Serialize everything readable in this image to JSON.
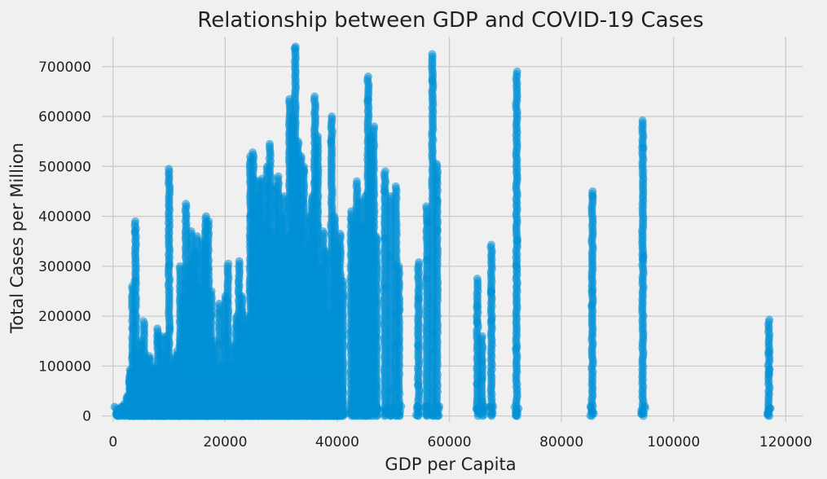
{
  "chart_data": {
    "type": "scatter",
    "title": "Relationship between GDP and COVID-19 Cases",
    "xlabel": "GDP per Capita",
    "ylabel": "Total Cases per Million",
    "xlim": [
      -2000,
      123000
    ],
    "ylim": [
      -12000,
      760000
    ],
    "grid": true,
    "color": "#008fd5",
    "point_alpha": 0.55,
    "x_ticks": [
      {
        "value": 0,
        "label": "0"
      },
      {
        "value": 20000,
        "label": "20000"
      },
      {
        "value": 40000,
        "label": "40000"
      },
      {
        "value": 60000,
        "label": "60000"
      },
      {
        "value": 80000,
        "label": "80000"
      },
      {
        "value": 100000,
        "label": "100000"
      },
      {
        "value": 120000,
        "label": "120000"
      }
    ],
    "y_ticks": [
      {
        "value": 0,
        "label": "0"
      },
      {
        "value": 100000,
        "label": "100000"
      },
      {
        "value": 200000,
        "label": "200000"
      },
      {
        "value": 300000,
        "label": "300000"
      },
      {
        "value": 400000,
        "label": "400000"
      },
      {
        "value": 500000,
        "label": "500000"
      },
      {
        "value": 600000,
        "label": "600000"
      },
      {
        "value": 700000,
        "label": "700000"
      }
    ],
    "country_columns": [
      {
        "x": 700,
        "ymax": 8000
      },
      {
        "x": 1100,
        "ymax": 12000
      },
      {
        "x": 1500,
        "ymax": 15000
      },
      {
        "x": 2000,
        "ymax": 25000
      },
      {
        "x": 2500,
        "ymax": 40000
      },
      {
        "x": 3000,
        "ymax": 90000
      },
      {
        "x": 3500,
        "ymax": 260000
      },
      {
        "x": 4000,
        "ymax": 390000
      },
      {
        "x": 4500,
        "ymax": 130000
      },
      {
        "x": 5000,
        "ymax": 150000
      },
      {
        "x": 5500,
        "ymax": 190000
      },
      {
        "x": 6000,
        "ymax": 110000
      },
      {
        "x": 6500,
        "ymax": 120000
      },
      {
        "x": 7000,
        "ymax": 100000
      },
      {
        "x": 7500,
        "ymax": 90000
      },
      {
        "x": 8000,
        "ymax": 175000
      },
      {
        "x": 8500,
        "ymax": 160000
      },
      {
        "x": 9000,
        "ymax": 100000
      },
      {
        "x": 9500,
        "ymax": 160000
      },
      {
        "x": 10000,
        "ymax": 495000
      },
      {
        "x": 10500,
        "ymax": 100000
      },
      {
        "x": 11000,
        "ymax": 120000
      },
      {
        "x": 11500,
        "ymax": 130000
      },
      {
        "x": 12000,
        "ymax": 300000
      },
      {
        "x": 12500,
        "ymax": 240000
      },
      {
        "x": 13000,
        "ymax": 425000
      },
      {
        "x": 13500,
        "ymax": 300000
      },
      {
        "x": 14000,
        "ymax": 370000
      },
      {
        "x": 14500,
        "ymax": 330000
      },
      {
        "x": 15000,
        "ymax": 360000
      },
      {
        "x": 15500,
        "ymax": 260000
      },
      {
        "x": 16000,
        "ymax": 350000
      },
      {
        "x": 16500,
        "ymax": 400000
      },
      {
        "x": 17000,
        "ymax": 390000
      },
      {
        "x": 17500,
        "ymax": 250000
      },
      {
        "x": 18000,
        "ymax": 150000
      },
      {
        "x": 18500,
        "ymax": 100000
      },
      {
        "x": 19000,
        "ymax": 225000
      },
      {
        "x": 19500,
        "ymax": 100000
      },
      {
        "x": 20000,
        "ymax": 240000
      },
      {
        "x": 20500,
        "ymax": 305000
      },
      {
        "x": 21000,
        "ymax": 100000
      },
      {
        "x": 21500,
        "ymax": 140000
      },
      {
        "x": 22000,
        "ymax": 200000
      },
      {
        "x": 22500,
        "ymax": 310000
      },
      {
        "x": 23000,
        "ymax": 240000
      },
      {
        "x": 23500,
        "ymax": 180000
      },
      {
        "x": 24000,
        "ymax": 200000
      },
      {
        "x": 24500,
        "ymax": 520000
      },
      {
        "x": 25000,
        "ymax": 528000
      },
      {
        "x": 25500,
        "ymax": 440000
      },
      {
        "x": 26000,
        "ymax": 470000
      },
      {
        "x": 26500,
        "ymax": 475000
      },
      {
        "x": 27000,
        "ymax": 380000
      },
      {
        "x": 27500,
        "ymax": 500000
      },
      {
        "x": 28000,
        "ymax": 545000
      },
      {
        "x": 28500,
        "ymax": 360000
      },
      {
        "x": 29000,
        "ymax": 460000
      },
      {
        "x": 29500,
        "ymax": 480000
      },
      {
        "x": 30000,
        "ymax": 400000
      },
      {
        "x": 30500,
        "ymax": 440000
      },
      {
        "x": 31000,
        "ymax": 360000
      },
      {
        "x": 31500,
        "ymax": 635000
      },
      {
        "x": 32000,
        "ymax": 600000
      },
      {
        "x": 32500,
        "ymax": 740000
      },
      {
        "x": 33000,
        "ymax": 550000
      },
      {
        "x": 33500,
        "ymax": 520000
      },
      {
        "x": 34000,
        "ymax": 500000
      },
      {
        "x": 34500,
        "ymax": 330000
      },
      {
        "x": 35000,
        "ymax": 400000
      },
      {
        "x": 35500,
        "ymax": 440000
      },
      {
        "x": 36000,
        "ymax": 640000
      },
      {
        "x": 36500,
        "ymax": 560000
      },
      {
        "x": 37000,
        "ymax": 300000
      },
      {
        "x": 37500,
        "ymax": 370000
      },
      {
        "x": 38000,
        "ymax": 330000
      },
      {
        "x": 38500,
        "ymax": 190000
      },
      {
        "x": 39000,
        "ymax": 600000
      },
      {
        "x": 39500,
        "ymax": 400000
      },
      {
        "x": 40000,
        "ymax": 340000
      },
      {
        "x": 40500,
        "ymax": 365000
      },
      {
        "x": 41000,
        "ymax": 270000
      },
      {
        "x": 42500,
        "ymax": 410000
      },
      {
        "x": 43000,
        "ymax": 380000
      },
      {
        "x": 43500,
        "ymax": 470000
      },
      {
        "x": 44000,
        "ymax": 430000
      },
      {
        "x": 44500,
        "ymax": 380000
      },
      {
        "x": 45000,
        "ymax": 440000
      },
      {
        "x": 45500,
        "ymax": 680000
      },
      {
        "x": 46000,
        "ymax": 560000
      },
      {
        "x": 46500,
        "ymax": 580000
      },
      {
        "x": 47000,
        "ymax": 360000
      },
      {
        "x": 48500,
        "ymax": 490000
      },
      {
        "x": 49500,
        "ymax": 440000
      },
      {
        "x": 50500,
        "ymax": 460000
      },
      {
        "x": 51000,
        "ymax": 300000
      },
      {
        "x": 54500,
        "ymax": 308000
      },
      {
        "x": 56000,
        "ymax": 420000
      },
      {
        "x": 57000,
        "ymax": 725000
      },
      {
        "x": 57800,
        "ymax": 505000
      },
      {
        "x": 65000,
        "ymax": 275000
      },
      {
        "x": 65800,
        "ymax": 160000
      },
      {
        "x": 67500,
        "ymax": 343000
      },
      {
        "x": 72000,
        "ymax": 690000
      },
      {
        "x": 85500,
        "ymax": 450000
      },
      {
        "x": 94500,
        "ymax": 592000
      },
      {
        "x": 117000,
        "ymax": 193000
      }
    ]
  }
}
